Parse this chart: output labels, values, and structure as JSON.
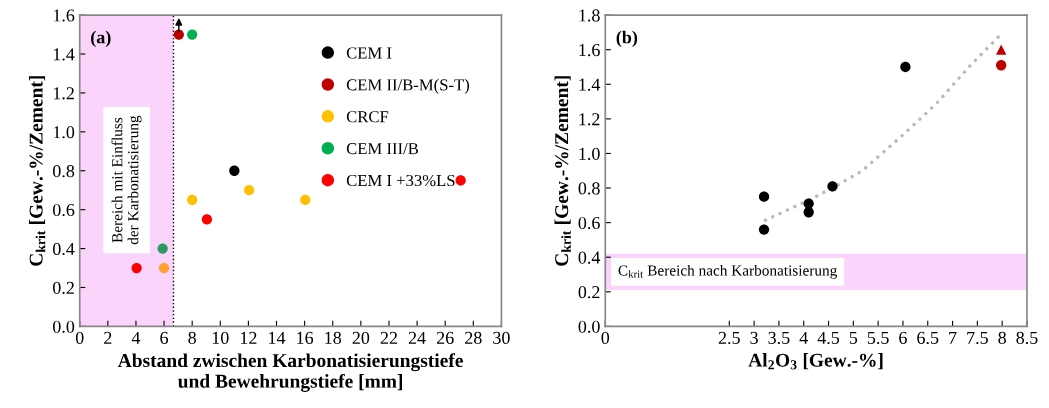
{
  "chart_data": [
    {
      "type": "scatter",
      "xlabel": "Abstand zwischen Karbonatisierungstiefe und Bewehrungstiefe [mm]",
      "ylabel": "C$_{krit}$ [Gew.-%/Zement]",
      "xlim": [
        0,
        30
      ],
      "xticks": [
        0,
        2,
        4,
        6,
        8,
        10,
        12,
        14,
        16,
        18,
        20,
        22,
        24,
        26,
        28,
        30
      ],
      "ylim": [
        0,
        1.6
      ],
      "yticks": [
        {
          "value": 0,
          "label": "0.0"
        },
        {
          "value": 0.2,
          "label": "0.2"
        },
        {
          "value": 0.4,
          "label": "0.4"
        },
        {
          "value": 0.6,
          "label": "0.6"
        },
        {
          "value": 0.8,
          "label": "0.8"
        },
        {
          "value": 1.0,
          "label": "1.0"
        },
        {
          "value": 1.2,
          "label": "1.2"
        },
        {
          "value": 1.4,
          "label": "1.4"
        },
        {
          "value": 1.6,
          "label": "1.6"
        }
      ],
      "marker": "circle",
      "grid": false,
      "legend": "top right",
      "series": [
        {
          "name": "CEM I",
          "color": "#000000",
          "x": [
            11.0
          ],
          "values": [
            0.8
          ]
        },
        {
          "name": "CEM II/B-M(S-T)",
          "color": "#c00000",
          "x": [
            7.05
          ],
          "values": [
            1.5
          ]
        },
        {
          "name": "CRCF",
          "color": "#ffc000",
          "colors": [
            "#ffa030",
            "#ffc000",
            "#ffc000",
            "#ffc000"
          ],
          "x": [
            6.0,
            8.0,
            12.05,
            16.05
          ],
          "values": [
            0.3,
            0.65,
            0.7,
            0.65
          ]
        },
        {
          "name": "CEM III/B",
          "color": "#00b050",
          "colors": [
            "#2e9960",
            "#00b050"
          ],
          "x": [
            5.9,
            8.0
          ],
          "values": [
            0.4,
            1.5
          ]
        },
        {
          "name": "CEM I +33%LS",
          "color": "#ff0000",
          "x": [
            4.05,
            9.05,
            27.1
          ],
          "values": [
            0.3,
            0.55,
            0.75
          ]
        }
      ],
      "bands": [
        {
          "axis": "x",
          "from": 0,
          "to": 6.67,
          "label": "Bereich mit Einfluss der Karbonatisierung",
          "color": "#fad4fa"
        }
      ],
      "ref_lines": [
        {
          "axis": "x",
          "value": 6.67,
          "color": "#000000",
          "line_style": "dotted"
        }
      ],
      "annotations": [
        "(a)"
      ]
    },
    {
      "type": "scatter",
      "xlabel": "Al$_{2}$O$_{3}$ [Gew.-%]",
      "ylabel": "C$_{krit}$ [Gew.-%/Zement]",
      "xlim": [
        0,
        8.5
      ],
      "xticks": [
        0,
        2.5,
        3,
        3.5,
        4,
        4.5,
        5,
        5.5,
        6,
        6.5,
        7,
        7.5,
        8,
        8.5
      ],
      "ylim": [
        0,
        1.8
      ],
      "yticks": [
        {
          "value": 0,
          "label": "0.0"
        },
        {
          "value": 0.2,
          "label": "0.2"
        },
        {
          "value": 0.4,
          "label": "0.4"
        },
        {
          "value": 0.6,
          "label": "0.6"
        },
        {
          "value": 0.8,
          "label": "0.8"
        },
        {
          "value": 1.0,
          "label": "1.0"
        },
        {
          "value": 1.2,
          "label": "1.2"
        },
        {
          "value": 1.4,
          "label": "1.4"
        },
        {
          "value": 1.6,
          "label": "1.6"
        },
        {
          "value": 1.8,
          "label": "1.8"
        }
      ],
      "grid": false,
      "series": [
        {
          "type": "line",
          "color": "#b8b8b8",
          "line_style": "dotted",
          "marker": "none",
          "x": [
            3.2,
            4.1,
            4.58,
            5.18,
            6.05,
            6.68,
            7.33,
            7.98
          ],
          "values": [
            0.61,
            0.73,
            0.8,
            0.9,
            1.12,
            1.29,
            1.5,
            1.69
          ]
        },
        {
          "color": "#000000",
          "marker": "circle",
          "x": [
            3.2,
            3.2,
            4.1,
            4.1,
            4.58,
            6.05
          ],
          "values": [
            0.75,
            0.56,
            0.71,
            0.66,
            0.81,
            1.5
          ]
        },
        {
          "color": "#c00000",
          "marker": "circle",
          "x": [
            7.98
          ],
          "values": [
            1.51
          ]
        },
        {
          "color": "#c00000",
          "marker": "triangle",
          "x": [
            7.98
          ],
          "values": [
            1.6
          ]
        }
      ],
      "bands": [
        {
          "axis": "y",
          "from": 0.21,
          "to": 0.42,
          "label": "C$_{krit}$ Bereich nach Karbonatisierung",
          "color": "#fad4fa"
        }
      ],
      "annotations": [
        "(b)"
      ]
    }
  ]
}
